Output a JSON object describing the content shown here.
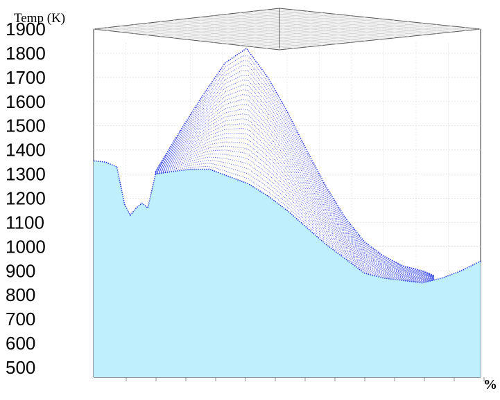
{
  "chart_data": {
    "type": "area",
    "title": "",
    "ylabel": "Temp (K)",
    "xlabel_fragment": "%",
    "ylim": [
      460,
      1900
    ],
    "y_ticks": [
      "1900",
      "1800",
      "1700",
      "1600",
      "1500",
      "1400",
      "1300",
      "1200",
      "1100",
      "1000",
      "900",
      "800",
      "700",
      "600",
      "500"
    ],
    "x_ticks": [
      "",
      "",
      "",
      "",
      "",
      "",
      "",
      "",
      "",
      "",
      "",
      "",
      ""
    ],
    "grid": true,
    "series": [
      {
        "values": [
          [
            0,
            1355
          ],
          [
            0.03,
            1350
          ],
          [
            0.06,
            1330
          ],
          [
            0.08,
            1175
          ],
          [
            0.095,
            1130
          ],
          [
            0.11,
            1160
          ],
          [
            0.125,
            1180
          ],
          [
            0.14,
            1160
          ],
          [
            0.16,
            1300
          ],
          [
            0.2,
            1310
          ],
          [
            0.25,
            1320
          ],
          [
            0.3,
            1320
          ],
          [
            0.35,
            1290
          ],
          [
            0.4,
            1260
          ],
          [
            0.45,
            1210
          ],
          [
            0.5,
            1150
          ],
          [
            0.55,
            1080
          ],
          [
            0.6,
            1010
          ],
          [
            0.65,
            950
          ],
          [
            0.7,
            890
          ],
          [
            0.75,
            870
          ],
          [
            0.8,
            860
          ],
          [
            0.85,
            850
          ],
          [
            0.9,
            870
          ],
          [
            0.95,
            900
          ],
          [
            1.0,
            940
          ]
        ]
      },
      {
        "values": [
          [
            0.16,
            1310
          ],
          [
            0.22,
            1470
          ],
          [
            0.28,
            1620
          ],
          [
            0.34,
            1760
          ],
          [
            0.395,
            1820
          ],
          [
            0.45,
            1700
          ],
          [
            0.5,
            1560
          ],
          [
            0.55,
            1400
          ],
          [
            0.6,
            1250
          ],
          [
            0.65,
            1120
          ],
          [
            0.7,
            1020
          ],
          [
            0.75,
            960
          ],
          [
            0.8,
            920
          ],
          [
            0.85,
            900
          ],
          [
            0.88,
            880
          ]
        ]
      }
    ]
  }
}
